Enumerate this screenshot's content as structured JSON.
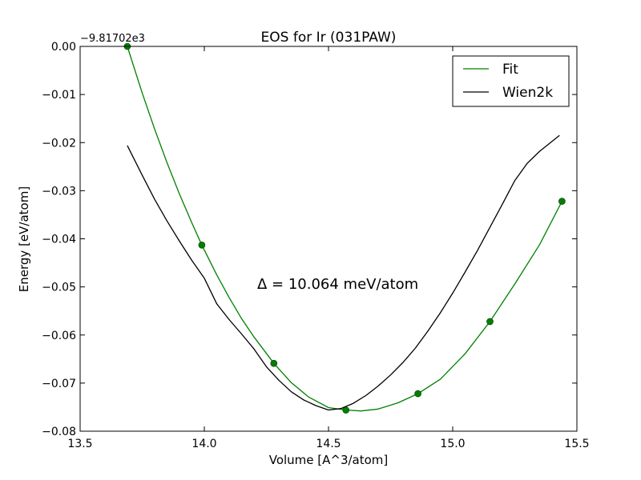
{
  "chart_data": {
    "type": "line",
    "title": "EOS for Ir (031PAW)",
    "xlabel": "Volume [A^3/atom]",
    "ylabel": "Energy [eV/atom]",
    "offset_label": "−9.81702e3",
    "annotation": "Δ = 10.064 meV/atom",
    "xlim": [
      13.5,
      15.5
    ],
    "ylim": [
      -0.08,
      0.0
    ],
    "xticks": [
      13.5,
      14.0,
      14.5,
      15.0,
      15.5
    ],
    "xtick_labels": [
      "13.5",
      "14.0",
      "14.5",
      "15.0",
      "15.5"
    ],
    "yticks": [
      0.0,
      -0.01,
      -0.02,
      -0.03,
      -0.04,
      -0.05,
      -0.06,
      -0.07,
      -0.08
    ],
    "ytick_labels": [
      "0.00",
      "−0.01",
      "−0.02",
      "−0.03",
      "−0.04",
      "−0.05",
      "−0.06",
      "−0.07",
      "−0.08"
    ],
    "grid": false,
    "legend_position": "top-right",
    "series": [
      {
        "name": "Fit",
        "color": "#008000",
        "style": "line",
        "x": [
          13.69,
          13.75,
          13.8,
          13.85,
          13.9,
          13.95,
          13.99,
          14.05,
          14.1,
          14.15,
          14.2,
          14.28,
          14.35,
          14.42,
          14.5,
          14.57,
          14.63,
          14.7,
          14.78,
          14.86,
          14.95,
          15.05,
          15.15,
          15.25,
          15.35,
          15.44
        ],
        "y": [
          0.0,
          -0.0097,
          -0.0172,
          -0.0242,
          -0.0307,
          -0.0367,
          -0.0413,
          -0.0475,
          -0.0522,
          -0.0566,
          -0.0604,
          -0.0659,
          -0.0699,
          -0.0729,
          -0.0751,
          -0.0756,
          -0.0758,
          -0.0754,
          -0.0741,
          -0.0722,
          -0.0692,
          -0.0639,
          -0.0572,
          -0.0494,
          -0.0412,
          -0.0322
        ]
      },
      {
        "name": "",
        "color": "#008000",
        "style": "markers",
        "x": [
          13.69,
          13.99,
          14.28,
          14.57,
          14.86,
          15.15,
          15.44
        ],
        "y": [
          0.0,
          -0.0413,
          -0.0659,
          -0.0756,
          -0.0722,
          -0.0572,
          -0.0322
        ]
      },
      {
        "name": "Wien2k",
        "color": "#000000",
        "style": "line",
        "x": [
          13.69,
          13.75,
          13.8,
          13.85,
          13.9,
          13.95,
          14.0,
          14.05,
          14.1,
          14.15,
          14.2,
          14.25,
          14.3,
          14.35,
          14.4,
          14.45,
          14.5,
          14.55,
          14.6,
          14.65,
          14.7,
          14.75,
          14.8,
          14.85,
          14.9,
          14.95,
          15.0,
          15.05,
          15.1,
          15.15,
          15.2,
          15.25,
          15.3,
          15.35,
          15.43
        ],
        "y": [
          -0.0206,
          -0.0268,
          -0.0318,
          -0.0363,
          -0.0405,
          -0.0445,
          -0.0482,
          -0.0535,
          -0.0568,
          -0.0598,
          -0.0629,
          -0.0666,
          -0.0694,
          -0.0718,
          -0.0735,
          -0.0747,
          -0.0756,
          -0.0753,
          -0.0742,
          -0.0726,
          -0.0706,
          -0.0683,
          -0.0657,
          -0.0627,
          -0.0592,
          -0.0554,
          -0.0513,
          -0.0469,
          -0.0424,
          -0.0376,
          -0.0328,
          -0.0279,
          -0.0243,
          -0.0218,
          -0.0185
        ]
      }
    ]
  }
}
